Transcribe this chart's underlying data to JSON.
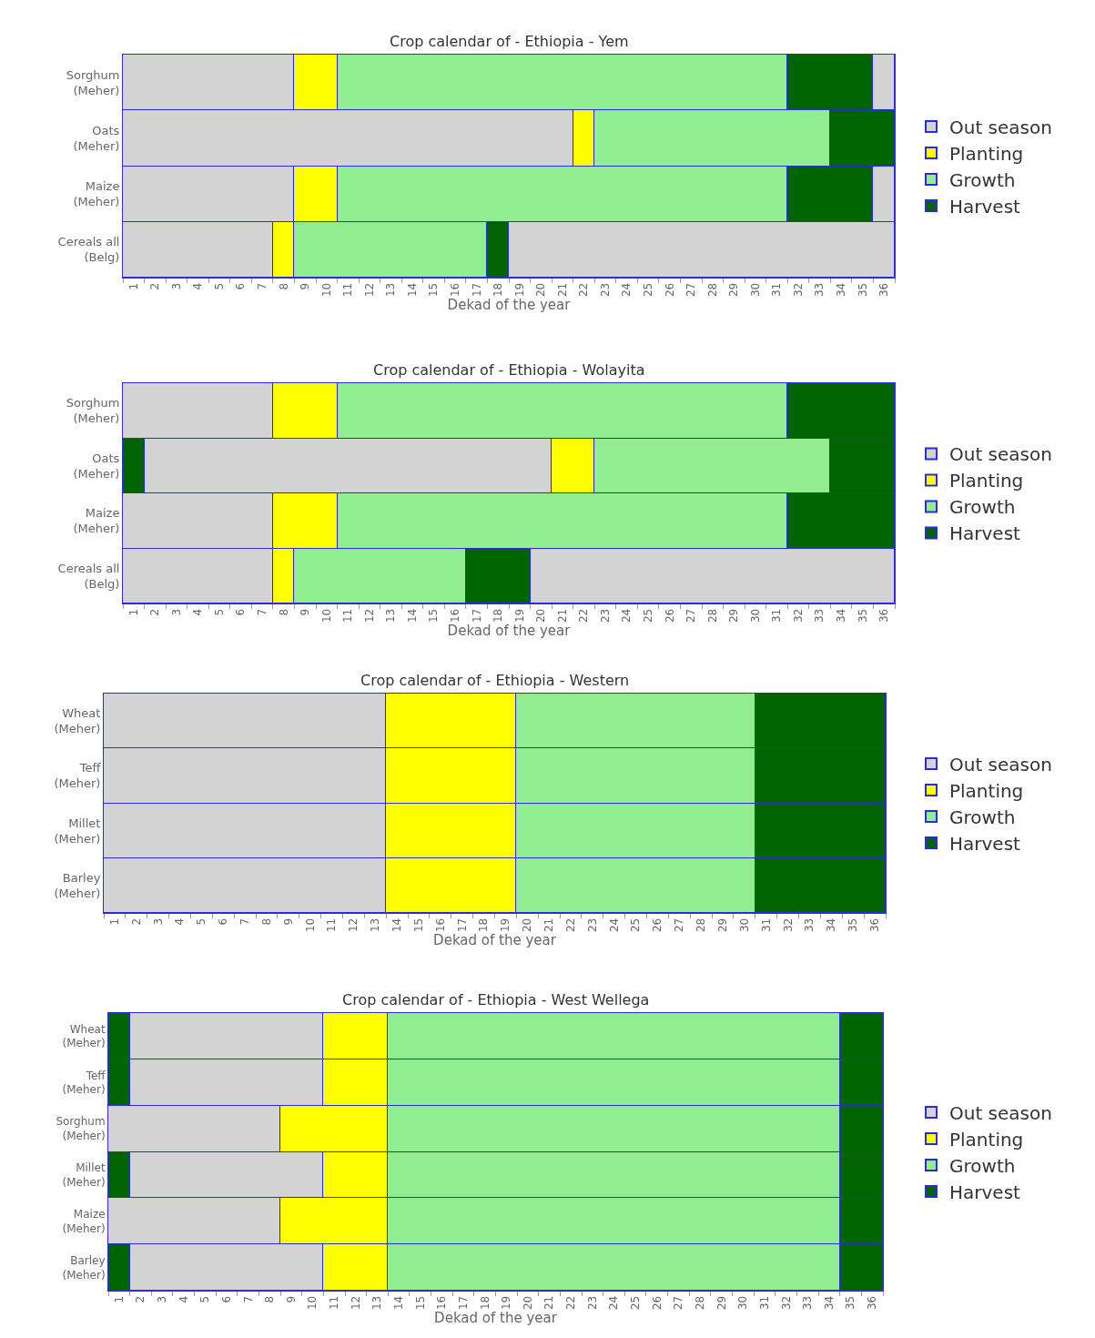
{
  "chart_data": [
    {
      "type": "bar",
      "orientation": "horizontal",
      "title": "Crop calendar of - Ethiopia - Yem",
      "xlabel": "Dekad of the year",
      "legend": "right",
      "grid": "x",
      "xlim": [
        0,
        36
      ],
      "xticks": [
        {
          "value": 0,
          "label": null
        },
        {
          "value": 0.5,
          "label": "1"
        },
        {
          "value": 1,
          "label": null
        },
        {
          "value": 1.5,
          "label": "2"
        },
        {
          "value": 2,
          "label": null
        },
        {
          "value": 2.5,
          "label": "3"
        },
        {
          "value": 3,
          "label": null
        },
        {
          "value": 3.5,
          "label": "4"
        },
        {
          "value": 4,
          "label": null
        },
        {
          "value": 4.5,
          "label": "5"
        },
        {
          "value": 5,
          "label": null
        },
        {
          "value": 5.5,
          "label": "6"
        },
        {
          "value": 6,
          "label": null
        },
        {
          "value": 6.5,
          "label": "7"
        },
        {
          "value": 7,
          "label": null
        },
        {
          "value": 7.5,
          "label": "8"
        },
        {
          "value": 8,
          "label": null
        },
        {
          "value": 8.5,
          "label": "9"
        },
        {
          "value": 9,
          "label": null
        },
        {
          "value": 9.5,
          "label": "10"
        },
        {
          "value": 10,
          "label": null
        },
        {
          "value": 10.5,
          "label": "11"
        },
        {
          "value": 11,
          "label": null
        },
        {
          "value": 11.5,
          "label": "12"
        },
        {
          "value": 12,
          "label": null
        },
        {
          "value": 12.5,
          "label": "13"
        },
        {
          "value": 13,
          "label": null
        },
        {
          "value": 13.5,
          "label": "14"
        },
        {
          "value": 14,
          "label": null
        },
        {
          "value": 14.5,
          "label": "15"
        },
        {
          "value": 15,
          "label": null
        },
        {
          "value": 15.5,
          "label": "16"
        },
        {
          "value": 16,
          "label": null
        },
        {
          "value": 16.5,
          "label": "17"
        },
        {
          "value": 17,
          "label": null
        },
        {
          "value": 17.5,
          "label": "18"
        },
        {
          "value": 18,
          "label": null
        },
        {
          "value": 18.5,
          "label": "19"
        },
        {
          "value": 19,
          "label": null
        },
        {
          "value": 19.5,
          "label": "20"
        },
        {
          "value": 20,
          "label": null
        },
        {
          "value": 20.5,
          "label": "21"
        },
        {
          "value": 21,
          "label": null
        },
        {
          "value": 21.5,
          "label": "22"
        },
        {
          "value": 22,
          "label": null
        },
        {
          "value": 22.5,
          "label": "23"
        },
        {
          "value": 23,
          "label": null
        },
        {
          "value": 23.5,
          "label": "24"
        },
        {
          "value": 24,
          "label": null
        },
        {
          "value": 24.5,
          "label": "25"
        },
        {
          "value": 25,
          "label": null
        },
        {
          "value": 25.5,
          "label": "26"
        },
        {
          "value": 26,
          "label": null
        },
        {
          "value": 26.5,
          "label": "27"
        },
        {
          "value": 27,
          "label": null
        },
        {
          "value": 27.5,
          "label": "28"
        },
        {
          "value": 28,
          "label": null
        },
        {
          "value": 28.5,
          "label": "29"
        },
        {
          "value": 29,
          "label": null
        },
        {
          "value": 29.5,
          "label": "30"
        },
        {
          "value": 30,
          "label": null
        },
        {
          "value": 30.5,
          "label": "31"
        },
        {
          "value": 31,
          "label": null
        },
        {
          "value": 31.5,
          "label": "32"
        },
        {
          "value": 32,
          "label": null
        },
        {
          "value": 32.5,
          "label": "33"
        },
        {
          "value": 33,
          "label": null
        },
        {
          "value": 33.5,
          "label": "34"
        },
        {
          "value": 34,
          "label": null
        },
        {
          "value": 34.5,
          "label": "35"
        },
        {
          "value": 35,
          "label": null
        },
        {
          "value": 35.5,
          "label": "36"
        },
        {
          "value": 36,
          "label": null
        }
      ],
      "categories": [
        "Sorghum (Meher)",
        "Oats (Meher)",
        "Maize (Meher)",
        "Cereals all (Belg)"
      ],
      "series": [
        {
          "name": "Out season",
          "color": "#d3d3d3",
          "values": [
            8,
            21,
            8,
            7
          ],
          "base": [
            0,
            0,
            0,
            0
          ]
        },
        {
          "name": "Planting",
          "color": "#ffff00",
          "values": [
            2,
            1,
            2,
            1
          ],
          "base": [
            8,
            21,
            8,
            7
          ]
        },
        {
          "name": "Growth",
          "color": "#90ee90",
          "values": [
            21,
            11,
            21,
            9
          ],
          "base": [
            10,
            22,
            10,
            8
          ]
        },
        {
          "name": "Harvest",
          "color": "#006400",
          "values": [
            4,
            3,
            4,
            1
          ],
          "base": [
            31,
            33,
            31,
            17
          ]
        },
        {
          "color": "#d3d3d3",
          "values": [
            1,
            null,
            1,
            18
          ],
          "base": [
            35,
            null,
            35,
            18
          ]
        }
      ]
    },
    {
      "type": "bar",
      "orientation": "horizontal",
      "title": "Crop calendar of - Ethiopia - Wolayita",
      "xlabel": "Dekad of the year",
      "legend": "right",
      "grid": "x",
      "xlim": [
        0,
        36
      ],
      "xticks": [
        {
          "value": 0,
          "label": null
        },
        {
          "value": 0.5,
          "label": "1"
        },
        {
          "value": 1,
          "label": null
        },
        {
          "value": 1.5,
          "label": "2"
        },
        {
          "value": 2,
          "label": null
        },
        {
          "value": 2.5,
          "label": "3"
        },
        {
          "value": 3,
          "label": null
        },
        {
          "value": 3.5,
          "label": "4"
        },
        {
          "value": 4,
          "label": null
        },
        {
          "value": 4.5,
          "label": "5"
        },
        {
          "value": 5,
          "label": null
        },
        {
          "value": 5.5,
          "label": "6"
        },
        {
          "value": 6,
          "label": null
        },
        {
          "value": 6.5,
          "label": "7"
        },
        {
          "value": 7,
          "label": null
        },
        {
          "value": 7.5,
          "label": "8"
        },
        {
          "value": 8,
          "label": null
        },
        {
          "value": 8.5,
          "label": "9"
        },
        {
          "value": 9,
          "label": null
        },
        {
          "value": 9.5,
          "label": "10"
        },
        {
          "value": 10,
          "label": null
        },
        {
          "value": 10.5,
          "label": "11"
        },
        {
          "value": 11,
          "label": null
        },
        {
          "value": 11.5,
          "label": "12"
        },
        {
          "value": 12,
          "label": null
        },
        {
          "value": 12.5,
          "label": "13"
        },
        {
          "value": 13,
          "label": null
        },
        {
          "value": 13.5,
          "label": "14"
        },
        {
          "value": 14,
          "label": null
        },
        {
          "value": 14.5,
          "label": "15"
        },
        {
          "value": 15,
          "label": null
        },
        {
          "value": 15.5,
          "label": "16"
        },
        {
          "value": 16,
          "label": null
        },
        {
          "value": 16.5,
          "label": "17"
        },
        {
          "value": 17,
          "label": null
        },
        {
          "value": 17.5,
          "label": "18"
        },
        {
          "value": 18,
          "label": null
        },
        {
          "value": 18.5,
          "label": "19"
        },
        {
          "value": 19,
          "label": null
        },
        {
          "value": 19.5,
          "label": "20"
        },
        {
          "value": 20,
          "label": null
        },
        {
          "value": 20.5,
          "label": "21"
        },
        {
          "value": 21,
          "label": null
        },
        {
          "value": 21.5,
          "label": "22"
        },
        {
          "value": 22,
          "label": null
        },
        {
          "value": 22.5,
          "label": "23"
        },
        {
          "value": 23,
          "label": null
        },
        {
          "value": 23.5,
          "label": "24"
        },
        {
          "value": 24,
          "label": null
        },
        {
          "value": 24.5,
          "label": "25"
        },
        {
          "value": 25,
          "label": null
        },
        {
          "value": 25.5,
          "label": "26"
        },
        {
          "value": 26,
          "label": null
        },
        {
          "value": 26.5,
          "label": "27"
        },
        {
          "value": 27,
          "label": null
        },
        {
          "value": 27.5,
          "label": "28"
        },
        {
          "value": 28,
          "label": null
        },
        {
          "value": 28.5,
          "label": "29"
        },
        {
          "value": 29,
          "label": null
        },
        {
          "value": 29.5,
          "label": "30"
        },
        {
          "value": 30,
          "label": null
        },
        {
          "value": 30.5,
          "label": "31"
        },
        {
          "value": 31,
          "label": null
        },
        {
          "value": 31.5,
          "label": "32"
        },
        {
          "value": 32,
          "label": null
        },
        {
          "value": 32.5,
          "label": "33"
        },
        {
          "value": 33,
          "label": null
        },
        {
          "value": 33.5,
          "label": "34"
        },
        {
          "value": 34,
          "label": null
        },
        {
          "value": 34.5,
          "label": "35"
        },
        {
          "value": 35,
          "label": null
        },
        {
          "value": 35.5,
          "label": "36"
        },
        {
          "value": 36,
          "label": null
        }
      ],
      "categories": [
        "Sorghum (Meher)",
        "Oats (Meher)",
        "Maize (Meher)",
        "Cereals all (Belg)"
      ],
      "series": [
        {
          "name": "Out season",
          "color": "#d3d3d3",
          "values": [
            7,
            19,
            7,
            7
          ],
          "base": [
            0,
            1,
            0,
            0
          ]
        },
        {
          "name": "Planting",
          "color": "#ffff00",
          "values": [
            3,
            2,
            3,
            1
          ],
          "base": [
            7,
            20,
            7,
            7
          ]
        },
        {
          "name": "Growth",
          "color": "#90ee90",
          "values": [
            21,
            11,
            21,
            8
          ],
          "base": [
            10,
            22,
            10,
            8
          ]
        },
        {
          "name": "Harvest",
          "color": "#006400",
          "values": [
            5,
            3,
            5,
            3
          ],
          "base": [
            31,
            33,
            31,
            16
          ]
        },
        {
          "color": "#d3d3d3",
          "values": [
            null,
            null,
            null,
            17
          ],
          "base": [
            null,
            null,
            null,
            19
          ]
        },
        {
          "color": "#006400",
          "values": [
            null,
            1,
            null,
            null
          ],
          "base": [
            null,
            0,
            null,
            null
          ]
        }
      ]
    },
    {
      "type": "bar",
      "orientation": "horizontal",
      "title": "Crop calendar of - Ethiopia - Western",
      "xlabel": "Dekad of the year",
      "legend": "right",
      "grid": "x",
      "xlim": [
        0,
        36
      ],
      "xticks": [
        {
          "value": 0,
          "label": null
        },
        {
          "value": 0.5,
          "label": "1"
        },
        {
          "value": 1,
          "label": null
        },
        {
          "value": 1.5,
          "label": "2"
        },
        {
          "value": 2,
          "label": null
        },
        {
          "value": 2.5,
          "label": "3"
        },
        {
          "value": 3,
          "label": null
        },
        {
          "value": 3.5,
          "label": "4"
        },
        {
          "value": 4,
          "label": null
        },
        {
          "value": 4.5,
          "label": "5"
        },
        {
          "value": 5,
          "label": null
        },
        {
          "value": 5.5,
          "label": "6"
        },
        {
          "value": 6,
          "label": null
        },
        {
          "value": 6.5,
          "label": "7"
        },
        {
          "value": 7,
          "label": null
        },
        {
          "value": 7.5,
          "label": "8"
        },
        {
          "value": 8,
          "label": null
        },
        {
          "value": 8.5,
          "label": "9"
        },
        {
          "value": 9,
          "label": null
        },
        {
          "value": 9.5,
          "label": "10"
        },
        {
          "value": 10,
          "label": null
        },
        {
          "value": 10.5,
          "label": "11"
        },
        {
          "value": 11,
          "label": null
        },
        {
          "value": 11.5,
          "label": "12"
        },
        {
          "value": 12,
          "label": null
        },
        {
          "value": 12.5,
          "label": "13"
        },
        {
          "value": 13,
          "label": null
        },
        {
          "value": 13.5,
          "label": "14"
        },
        {
          "value": 14,
          "label": null
        },
        {
          "value": 14.5,
          "label": "15"
        },
        {
          "value": 15,
          "label": null
        },
        {
          "value": 15.5,
          "label": "16"
        },
        {
          "value": 16,
          "label": null
        },
        {
          "value": 16.5,
          "label": "17"
        },
        {
          "value": 17,
          "label": null
        },
        {
          "value": 17.5,
          "label": "18"
        },
        {
          "value": 18,
          "label": null
        },
        {
          "value": 18.5,
          "label": "19"
        },
        {
          "value": 19,
          "label": null
        },
        {
          "value": 19.5,
          "label": "20"
        },
        {
          "value": 20,
          "label": null
        },
        {
          "value": 20.5,
          "label": "21"
        },
        {
          "value": 21,
          "label": null
        },
        {
          "value": 21.5,
          "label": "22"
        },
        {
          "value": 22,
          "label": null
        },
        {
          "value": 22.5,
          "label": "23"
        },
        {
          "value": 23,
          "label": null
        },
        {
          "value": 23.5,
          "label": "24"
        },
        {
          "value": 24,
          "label": null
        },
        {
          "value": 24.5,
          "label": "25"
        },
        {
          "value": 25,
          "label": null
        },
        {
          "value": 25.5,
          "label": "26"
        },
        {
          "value": 26,
          "label": null
        },
        {
          "value": 26.5,
          "label": "27"
        },
        {
          "value": 27,
          "label": null
        },
        {
          "value": 27.5,
          "label": "28"
        },
        {
          "value": 28,
          "label": null
        },
        {
          "value": 28.5,
          "label": "29"
        },
        {
          "value": 29,
          "label": null
        },
        {
          "value": 29.5,
          "label": "30"
        },
        {
          "value": 30,
          "label": null
        },
        {
          "value": 30.5,
          "label": "31"
        },
        {
          "value": 31,
          "label": null
        },
        {
          "value": 31.5,
          "label": "32"
        },
        {
          "value": 32,
          "label": null
        },
        {
          "value": 32.5,
          "label": "33"
        },
        {
          "value": 33,
          "label": null
        },
        {
          "value": 33.5,
          "label": "34"
        },
        {
          "value": 34,
          "label": null
        },
        {
          "value": 34.5,
          "label": "35"
        },
        {
          "value": 35,
          "label": null
        },
        {
          "value": 35.5,
          "label": "36"
        },
        {
          "value": 36,
          "label": null
        }
      ],
      "categories": [
        "Wheat (Meher)",
        "Teff (Meher)",
        "Millet (Meher)",
        "Barley (Meher)"
      ],
      "series": [
        {
          "name": "Out season",
          "color": "#d3d3d3",
          "values": [
            13,
            13,
            13,
            13
          ],
          "base": [
            0,
            0,
            0,
            0
          ]
        },
        {
          "name": "Planting",
          "color": "#ffff00",
          "values": [
            6,
            6,
            6,
            6
          ],
          "base": [
            13,
            13,
            13,
            13
          ]
        },
        {
          "name": "Growth",
          "color": "#90ee90",
          "values": [
            11,
            11,
            11,
            11
          ],
          "base": [
            19,
            19,
            19,
            19
          ]
        },
        {
          "name": "Harvest",
          "color": "#006400",
          "values": [
            6,
            6,
            6,
            6
          ],
          "base": [
            30,
            30,
            30,
            30
          ]
        }
      ]
    },
    {
      "type": "bar",
      "orientation": "horizontal",
      "title": "Crop calendar of - Ethiopia - West Wellega",
      "xlabel": "Dekad of the year",
      "legend": "right",
      "grid": "x",
      "xlim": [
        0,
        36
      ],
      "xticks": [
        {
          "value": 0,
          "label": null
        },
        {
          "value": 0.5,
          "label": "1"
        },
        {
          "value": 1,
          "label": null
        },
        {
          "value": 1.5,
          "label": "2"
        },
        {
          "value": 2,
          "label": null
        },
        {
          "value": 2.5,
          "label": "3"
        },
        {
          "value": 3,
          "label": null
        },
        {
          "value": 3.5,
          "label": "4"
        },
        {
          "value": 4,
          "label": null
        },
        {
          "value": 4.5,
          "label": "5"
        },
        {
          "value": 5,
          "label": null
        },
        {
          "value": 5.5,
          "label": "6"
        },
        {
          "value": 6,
          "label": null
        },
        {
          "value": 6.5,
          "label": "7"
        },
        {
          "value": 7,
          "label": null
        },
        {
          "value": 7.5,
          "label": "8"
        },
        {
          "value": 8,
          "label": null
        },
        {
          "value": 8.5,
          "label": "9"
        },
        {
          "value": 9,
          "label": null
        },
        {
          "value": 9.5,
          "label": "10"
        },
        {
          "value": 10,
          "label": null
        },
        {
          "value": 10.5,
          "label": "11"
        },
        {
          "value": 11,
          "label": null
        },
        {
          "value": 11.5,
          "label": "12"
        },
        {
          "value": 12,
          "label": null
        },
        {
          "value": 12.5,
          "label": "13"
        },
        {
          "value": 13,
          "label": null
        },
        {
          "value": 13.5,
          "label": "14"
        },
        {
          "value": 14,
          "label": null
        },
        {
          "value": 14.5,
          "label": "15"
        },
        {
          "value": 15,
          "label": null
        },
        {
          "value": 15.5,
          "label": "16"
        },
        {
          "value": 16,
          "label": null
        },
        {
          "value": 16.5,
          "label": "17"
        },
        {
          "value": 17,
          "label": null
        },
        {
          "value": 17.5,
          "label": "18"
        },
        {
          "value": 18,
          "label": null
        },
        {
          "value": 18.5,
          "label": "19"
        },
        {
          "value": 19,
          "label": null
        },
        {
          "value": 19.5,
          "label": "20"
        },
        {
          "value": 20,
          "label": null
        },
        {
          "value": 20.5,
          "label": "21"
        },
        {
          "value": 21,
          "label": null
        },
        {
          "value": 21.5,
          "label": "22"
        },
        {
          "value": 22,
          "label": null
        },
        {
          "value": 22.5,
          "label": "23"
        },
        {
          "value": 23,
          "label": null
        },
        {
          "value": 23.5,
          "label": "24"
        },
        {
          "value": 24,
          "label": null
        },
        {
          "value": 24.5,
          "label": "25"
        },
        {
          "value": 25,
          "label": null
        },
        {
          "value": 25.5,
          "label": "26"
        },
        {
          "value": 26,
          "label": null
        },
        {
          "value": 26.5,
          "label": "27"
        },
        {
          "value": 27,
          "label": null
        },
        {
          "value": 27.5,
          "label": "28"
        },
        {
          "value": 28,
          "label": null
        },
        {
          "value": 28.5,
          "label": "29"
        },
        {
          "value": 29,
          "label": null
        },
        {
          "value": 29.5,
          "label": "30"
        },
        {
          "value": 30,
          "label": null
        },
        {
          "value": 30.5,
          "label": "31"
        },
        {
          "value": 31,
          "label": null
        },
        {
          "value": 31.5,
          "label": "32"
        },
        {
          "value": 32,
          "label": null
        },
        {
          "value": 32.5,
          "label": "33"
        },
        {
          "value": 33,
          "label": null
        },
        {
          "value": 33.5,
          "label": "34"
        },
        {
          "value": 34,
          "label": null
        },
        {
          "value": 34.5,
          "label": "35"
        },
        {
          "value": 35,
          "label": null
        },
        {
          "value": 35.5,
          "label": "36"
        },
        {
          "value": 36,
          "label": null
        }
      ],
      "categories": [
        "Wheat (Meher)",
        "Teff (Meher)",
        "Sorghum (Meher)",
        "Millet (Meher)",
        "Maize (Meher)",
        "Barley (Meher)"
      ],
      "series": [
        {
          "name": "Out season",
          "color": "#d3d3d3",
          "values": [
            9,
            9,
            8,
            9,
            8,
            9
          ],
          "base": [
            1,
            1,
            0,
            1,
            0,
            1
          ]
        },
        {
          "name": "Planting",
          "color": "#ffff00",
          "values": [
            3,
            3,
            5,
            3,
            5,
            3
          ],
          "base": [
            10,
            10,
            8,
            10,
            8,
            10
          ]
        },
        {
          "name": "Growth",
          "color": "#90ee90",
          "values": [
            21,
            21,
            21,
            21,
            21,
            21
          ],
          "base": [
            13,
            13,
            13,
            13,
            13,
            13
          ]
        },
        {
          "name": "Harvest",
          "color": "#006400",
          "values": [
            2,
            2,
            2,
            2,
            2,
            2
          ],
          "base": [
            34,
            34,
            34,
            34,
            34,
            34
          ]
        },
        {
          "color": "#006400",
          "values": [
            1,
            1,
            null,
            1,
            null,
            1
          ],
          "base": [
            0,
            0,
            null,
            0,
            null,
            0
          ]
        }
      ]
    }
  ]
}
